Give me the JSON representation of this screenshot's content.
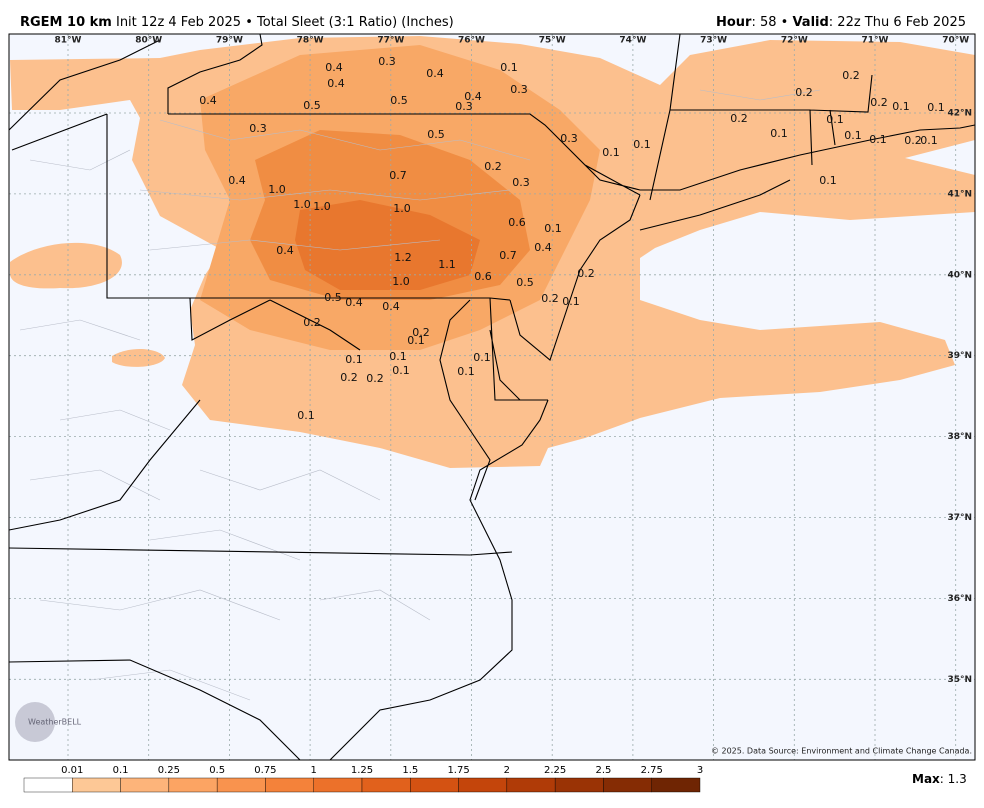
{
  "header": {
    "model": "RGEM 10 km",
    "init": "Init 12z 4 Feb 2025",
    "separator": "•",
    "product": "Total Sleet (3:1 Ratio) (Inches)",
    "hour_label": "Hour",
    "hour": ": 58",
    "valid_label": "Valid",
    "valid": ": 22z Thu 6 Feb 2025"
  },
  "map": {
    "lon_labels": [
      "81°W",
      "80°W",
      "79°W",
      "78°W",
      "77°W",
      "76°W",
      "75°W",
      "74°W",
      "73°W",
      "72°W",
      "71°W",
      "70°W"
    ],
    "lat_labels": [
      "42°N",
      "41°N",
      "40°N",
      "39°N",
      "38°N",
      "37°N",
      "36°N",
      "35°N"
    ],
    "labels": [
      "0.4",
      "0.4",
      "0.3",
      "0.4",
      "0.1",
      "0.3",
      "0.4",
      "0.5",
      "0.5",
      "0.3",
      "0.4",
      "0.3",
      "0.5",
      "0.3",
      "0.1",
      "0.1",
      "0.2",
      "0.2",
      "0.2",
      "0.1",
      "0.1",
      "0.2",
      "0.1",
      "0.1",
      "0.1",
      "0.1",
      "0.2",
      "0.1",
      "0.1",
      "0.7",
      "0.2",
      "0.3",
      "0.4",
      "1.0",
      "1.0",
      "1.0",
      "1.0",
      "0.6",
      "0.1",
      "0.4",
      "0.4",
      "1.2",
      "1.1",
      "0.7",
      "0.2",
      "1.0",
      "0.6",
      "0.5",
      "0.5",
      "0.4",
      "0.4",
      "0.2",
      "0.1",
      "0.2",
      "0.2",
      "0.1",
      "0.1",
      "0.1",
      "0.1",
      "0.1",
      "0.2",
      "0.2",
      "0.1",
      "0.1"
    ],
    "copyright": "© 2025. Data Source: Environment and Climate Change Canada.",
    "logo": "WeatherBELL"
  },
  "colorbar": {
    "labels": [
      "0.01",
      "0.1",
      "0.25",
      "0.5",
      "0.75",
      "1",
      "1.25",
      "1.5",
      "1.75",
      "2",
      "2.25",
      "2.5",
      "2.75",
      "3"
    ],
    "colors": [
      "#ffffff",
      "#fdc896",
      "#fdb47a",
      "#fca463",
      "#f9934e",
      "#f4823a",
      "#ec712a",
      "#e1611c",
      "#d45212",
      "#c4450b",
      "#b03b07",
      "#9a3305",
      "#852c04",
      "#6f2503"
    ],
    "max_label": "Max",
    "max_value": ": 1.3"
  }
}
